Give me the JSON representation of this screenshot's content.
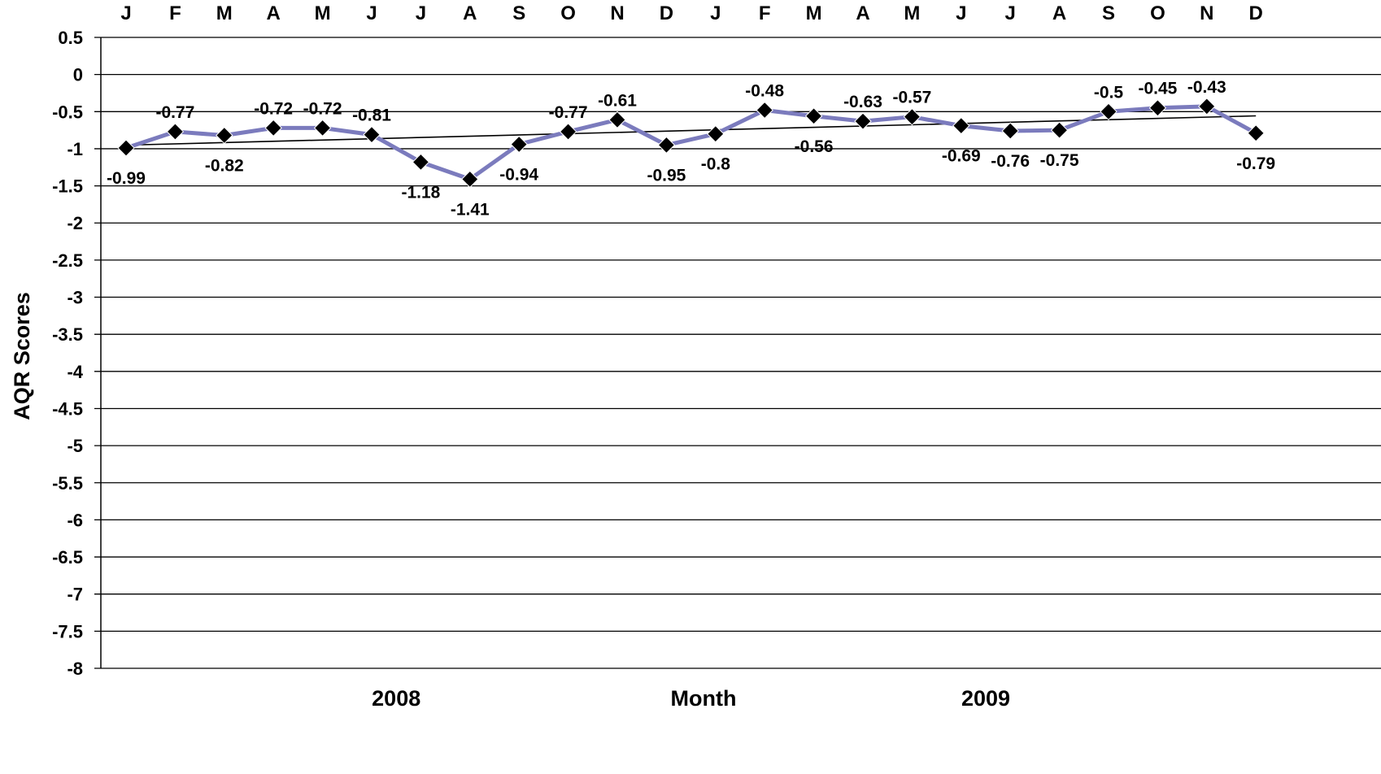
{
  "chart_data": {
    "type": "line",
    "ylabel": "AQR Scores",
    "xlabel": "Month",
    "ylim": [
      -8,
      0.5
    ],
    "ytick_step": 0.5,
    "yticks": [
      "0.5",
      "0",
      "-0.5",
      "-1",
      "-1.5",
      "-2",
      "-2.5",
      "-3",
      "-3.5",
      "-4",
      "-4.5",
      "-5",
      "-5.5",
      "-6",
      "-6.5",
      "-7",
      "-7.5",
      "-8"
    ],
    "categories": [
      "J",
      "F",
      "M",
      "A",
      "M",
      "J",
      "J",
      "A",
      "S",
      "O",
      "N",
      "D",
      "J",
      "F",
      "M",
      "A",
      "M",
      "J",
      "J",
      "A",
      "S",
      "O",
      "N",
      "D"
    ],
    "year_groups": [
      {
        "label": "2008",
        "start_index": 0,
        "end_index": 11
      },
      {
        "label": "2009",
        "start_index": 12,
        "end_index": 23
      }
    ],
    "series": [
      {
        "values": [
          -0.99,
          -0.77,
          -0.82,
          -0.72,
          -0.72,
          -0.81,
          -1.18,
          -1.41,
          -0.94,
          -0.77,
          -0.61,
          -0.95,
          -0.8,
          -0.48,
          -0.56,
          -0.63,
          -0.57,
          -0.69,
          -0.76,
          -0.75,
          -0.5,
          -0.45,
          -0.43,
          -0.79
        ],
        "data_labels": [
          "-0.99",
          "-0.77",
          "-0.82",
          "-0.72",
          "-0.72",
          "-0.81",
          "-1.18",
          "-1.41",
          "-0.94",
          "-0.77",
          "-0.61",
          "-0.95",
          "-0.8",
          "-0.48",
          "-0.56",
          "-0.63",
          "-0.57",
          "-0.69",
          "-0.76",
          "-0.75",
          "-0.5",
          "-0.45",
          "-0.43",
          "-0.79"
        ],
        "label_positions": [
          "below",
          "above",
          "below",
          "above",
          "above",
          "above",
          "below",
          "below",
          "below",
          "above",
          "above",
          "below",
          "below",
          "above",
          "below",
          "above",
          "above",
          "below",
          "below",
          "below",
          "above",
          "above",
          "above",
          "below"
        ],
        "color": "#7b7bbd",
        "marker": "diamond",
        "marker_color": "#000000"
      }
    ],
    "trendline": {
      "type": "linear",
      "color": "#000000"
    },
    "grid": true,
    "legend": "none"
  }
}
